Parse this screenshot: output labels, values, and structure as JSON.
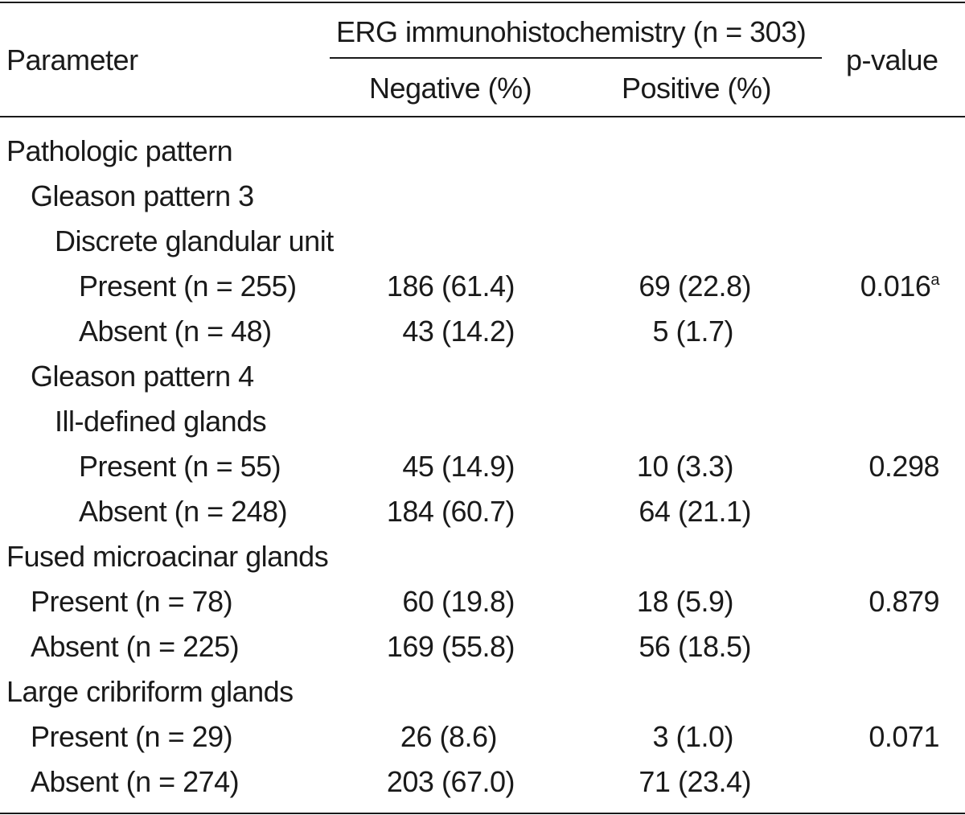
{
  "header": {
    "parameter": "Parameter",
    "erg_group": "ERG immunohistochemistry (n = 303)",
    "negative": "Negative (%)",
    "positive": "Positive (%)",
    "pvalue": "p-value"
  },
  "rows": [
    {
      "label": "Pathologic pattern",
      "neg": "",
      "pos": "",
      "p": "",
      "sup": ""
    },
    {
      "label": "Gleason pattern 3",
      "neg": "",
      "pos": "",
      "p": "",
      "sup": ""
    },
    {
      "label": "Discrete glandular unit",
      "neg": "",
      "pos": "",
      "p": "",
      "sup": ""
    },
    {
      "label": "Present (n = 255)",
      "neg": "186 (61.4)",
      "pos": "69 (22.8)",
      "p": "0.016",
      "sup": "a"
    },
    {
      "label": "Absent (n = 48)",
      "neg": "43 (14.2)",
      "pos": "5 (1.7)",
      "p": "",
      "sup": ""
    },
    {
      "label": "Gleason pattern 4",
      "neg": "",
      "pos": "",
      "p": "",
      "sup": ""
    },
    {
      "label": "Ill-defined glands",
      "neg": "",
      "pos": "",
      "p": "",
      "sup": ""
    },
    {
      "label": "Present (n = 55)",
      "neg": "45 (14.9)",
      "pos": "10 (3.3)",
      "p": "0.298",
      "sup": ""
    },
    {
      "label": "Absent (n = 248)",
      "neg": "184 (60.7)",
      "pos": "64 (21.1)",
      "p": "",
      "sup": ""
    },
    {
      "label": "Fused microacinar glands",
      "neg": "",
      "pos": "",
      "p": "",
      "sup": ""
    },
    {
      "label": "Present (n = 78)",
      "neg": "60 (19.8)",
      "pos": "18 (5.9)",
      "p": "0.879",
      "sup": ""
    },
    {
      "label": "Absent (n = 225)",
      "neg": "169 (55.8)",
      "pos": "56 (18.5)",
      "p": "",
      "sup": ""
    },
    {
      "label": "Large cribriform glands",
      "neg": "",
      "pos": "",
      "p": "",
      "sup": ""
    },
    {
      "label": "Present (n = 29)",
      "neg": "26 (8.6)",
      "pos": "3 (1.0)",
      "p": "0.071",
      "sup": ""
    },
    {
      "label": "Absent (n = 274)",
      "neg": "203 (67.0)",
      "pos": "71 (23.4)",
      "p": "",
      "sup": ""
    }
  ]
}
